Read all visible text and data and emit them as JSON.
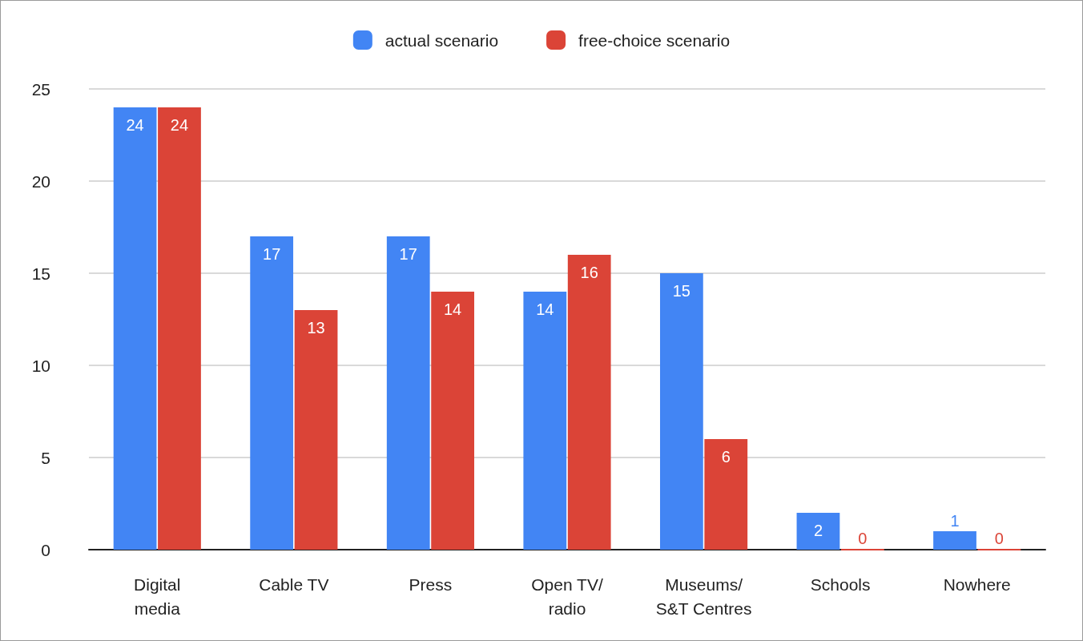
{
  "chart_data": {
    "type": "bar",
    "categories": [
      "Digital\nmedia",
      "Cable TV",
      "Press",
      "Open TV/\nradio",
      "Museums/\nS&T Centres",
      "Schools",
      "Nowhere"
    ],
    "series": [
      {
        "name": "actual scenario",
        "color": "#4285f4",
        "values": [
          24,
          17,
          17,
          14,
          15,
          2,
          1
        ]
      },
      {
        "name": "free-choice scenario",
        "color": "#db4437",
        "values": [
          24,
          13,
          14,
          16,
          6,
          0,
          0
        ]
      }
    ],
    "ylim": [
      0,
      25
    ],
    "yticks": [
      0,
      5,
      10,
      15,
      20,
      25
    ],
    "grid": "y",
    "legend": "top",
    "data_labels": true
  }
}
